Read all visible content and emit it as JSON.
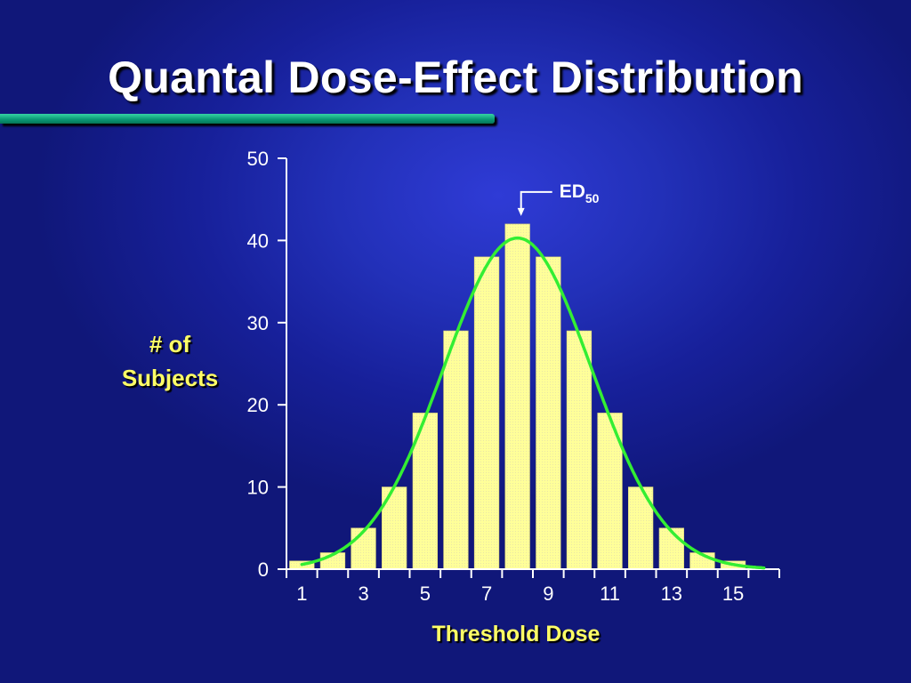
{
  "slide": {
    "title": "Quantal Dose-Effect Distribution"
  },
  "colors": {
    "background": "#1e2bb0",
    "title_text": "#ffffff",
    "accent_rule": "#13b58a",
    "bar_fill": "#ffff99",
    "curve": "#33ee33",
    "axis_label_text": "#ffff66"
  },
  "chart_data": {
    "type": "bar",
    "title": "",
    "xlabel": "Threshold Dose",
    "ylabel_lines": [
      "# of",
      "Subjects"
    ],
    "x": [
      1,
      2,
      3,
      4,
      5,
      6,
      7,
      8,
      9,
      10,
      11,
      12,
      13,
      14,
      15
    ],
    "values": [
      1,
      2,
      5,
      10,
      19,
      29,
      38,
      42,
      38,
      29,
      19,
      10,
      5,
      2,
      1
    ],
    "xticks": [
      1,
      3,
      5,
      7,
      9,
      11,
      13,
      15
    ],
    "yticks": [
      0,
      10,
      20,
      30,
      40,
      50
    ],
    "ylim": [
      0,
      50
    ],
    "xlim": [
      0.5,
      16.5
    ],
    "overlay_curve": {
      "type": "normal",
      "mean": 8,
      "peak": 40.3,
      "sd": 2.4,
      "x_range": [
        1,
        16
      ]
    },
    "annotation": {
      "label": "ED",
      "subscript": "50",
      "x": 8
    },
    "grid": false,
    "legend": "none"
  }
}
